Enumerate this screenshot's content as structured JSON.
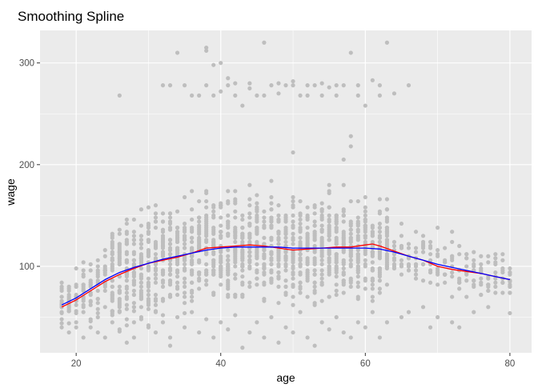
{
  "chart_data": {
    "type": "scatter",
    "title": "Smoothing Spline",
    "xlabel": "age",
    "ylabel": "wage",
    "xlim": [
      15,
      83
    ],
    "ylim": [
      15,
      332
    ],
    "xticks": [
      20,
      40,
      60,
      80
    ],
    "yticks": [
      100,
      200,
      300
    ],
    "grid": true,
    "legend": "none",
    "colors": {
      "panel": "#ebebeb",
      "grid": "#ffffff",
      "points": "#bebebe",
      "fit_1": "#ff0000",
      "fit_2": "#0000ff",
      "ticks": "#4d4d4d"
    },
    "scatter_points_high": [
      [
        34,
        310
      ],
      [
        38,
        315
      ],
      [
        38,
        312
      ],
      [
        39,
        298
      ],
      [
        40,
        300
      ],
      [
        41,
        285
      ],
      [
        42,
        280
      ],
      [
        44,
        275
      ],
      [
        46,
        320
      ],
      [
        48,
        280
      ],
      [
        50,
        282
      ],
      [
        52,
        278
      ],
      [
        55,
        276
      ],
      [
        58,
        310
      ],
      [
        59,
        278
      ],
      [
        61,
        283
      ],
      [
        62,
        278
      ],
      [
        63,
        320
      ],
      [
        66,
        278
      ],
      [
        26,
        268
      ],
      [
        32,
        278
      ],
      [
        33,
        278
      ],
      [
        35,
        278
      ],
      [
        36,
        268
      ],
      [
        37,
        268
      ],
      [
        38,
        278
      ],
      [
        39,
        268
      ],
      [
        40,
        272
      ],
      [
        43,
        258
      ],
      [
        45,
        268
      ],
      [
        47,
        278
      ],
      [
        49,
        278
      ],
      [
        51,
        268
      ],
      [
        53,
        278
      ],
      [
        54,
        268
      ],
      [
        56,
        268
      ],
      [
        57,
        278
      ],
      [
        59,
        268
      ],
      [
        60,
        258
      ],
      [
        62,
        268
      ],
      [
        64,
        270
      ],
      [
        41,
        278
      ],
      [
        42,
        268
      ],
      [
        44,
        280
      ],
      [
        46,
        268
      ],
      [
        48,
        270
      ],
      [
        50,
        278
      ],
      [
        52,
        268
      ],
      [
        54,
        280
      ],
      [
        56,
        278
      ],
      [
        58,
        228
      ],
      [
        58,
        218
      ],
      [
        50,
        212
      ],
      [
        57,
        205
      ]
    ],
    "scatter_points_low": [
      [
        18,
        40
      ],
      [
        18,
        55
      ],
      [
        19,
        35
      ],
      [
        19,
        60
      ],
      [
        20,
        45
      ],
      [
        20,
        70
      ],
      [
        21,
        30
      ],
      [
        21,
        55
      ],
      [
        22,
        40
      ],
      [
        22,
        65
      ],
      [
        23,
        35
      ],
      [
        23,
        50
      ],
      [
        24,
        30
      ],
      [
        24,
        60
      ],
      [
        25,
        45
      ],
      [
        25,
        72
      ],
      [
        26,
        38
      ],
      [
        26,
        55
      ],
      [
        27,
        25
      ],
      [
        27,
        48
      ],
      [
        28,
        30
      ],
      [
        28,
        45
      ],
      [
        29,
        50
      ],
      [
        30,
        40
      ],
      [
        31,
        35
      ],
      [
        31,
        55
      ],
      [
        32,
        45
      ],
      [
        33,
        30
      ],
      [
        33,
        22
      ],
      [
        34,
        50
      ],
      [
        35,
        40
      ],
      [
        36,
        55
      ],
      [
        37,
        35
      ],
      [
        38,
        48
      ],
      [
        39,
        30
      ],
      [
        40,
        45
      ],
      [
        41,
        38
      ],
      [
        42,
        52
      ],
      [
        43,
        20
      ],
      [
        44,
        35
      ],
      [
        45,
        45
      ],
      [
        46,
        30
      ],
      [
        47,
        50
      ],
      [
        48,
        25
      ],
      [
        49,
        40
      ],
      [
        50,
        35
      ],
      [
        51,
        55
      ],
      [
        52,
        30
      ],
      [
        53,
        22
      ],
      [
        54,
        45
      ],
      [
        55,
        38
      ],
      [
        56,
        50
      ],
      [
        57,
        35
      ],
      [
        58,
        30
      ],
      [
        59,
        45
      ],
      [
        60,
        40
      ],
      [
        61,
        55
      ],
      [
        62,
        30
      ],
      [
        63,
        45
      ],
      [
        65,
        50
      ],
      [
        66,
        55
      ],
      [
        68,
        60
      ],
      [
        69,
        40
      ],
      [
        70,
        50
      ],
      [
        72,
        45
      ],
      [
        73,
        40
      ],
      [
        75,
        55
      ],
      [
        77,
        60
      ],
      [
        80,
        80
      ],
      [
        80,
        85
      ],
      [
        80,
        92
      ],
      [
        79,
        88
      ]
    ],
    "core_seed": 7,
    "fit_1": {
      "x": [
        18,
        20,
        22,
        24,
        26,
        28,
        30,
        32,
        34,
        36,
        38,
        40,
        42,
        44,
        46,
        48,
        50,
        52,
        54,
        56,
        58,
        60,
        61,
        62,
        64,
        66,
        68,
        70,
        72,
        74,
        76,
        78,
        80
      ],
      "y": [
        60,
        67,
        76,
        85,
        92,
        98,
        103,
        106,
        109,
        113,
        118,
        119,
        120,
        121,
        120,
        118,
        116,
        117,
        118,
        119,
        119,
        121,
        122,
        120,
        115,
        110,
        106,
        100,
        97,
        95,
        93,
        90,
        87
      ]
    },
    "fit_2": {
      "x": [
        18,
        20,
        22,
        24,
        26,
        28,
        30,
        32,
        34,
        36,
        38,
        40,
        42,
        44,
        46,
        48,
        50,
        52,
        54,
        56,
        58,
        60,
        62,
        64,
        66,
        68,
        70,
        72,
        74,
        76,
        78,
        80
      ],
      "y": [
        62,
        69,
        78,
        87,
        94,
        99,
        103,
        107,
        110,
        113,
        116,
        118,
        119,
        119,
        119,
        119,
        118,
        118,
        118,
        118,
        118,
        118,
        117,
        114,
        110,
        106,
        102,
        99,
        96,
        93,
        90,
        87
      ]
    }
  }
}
